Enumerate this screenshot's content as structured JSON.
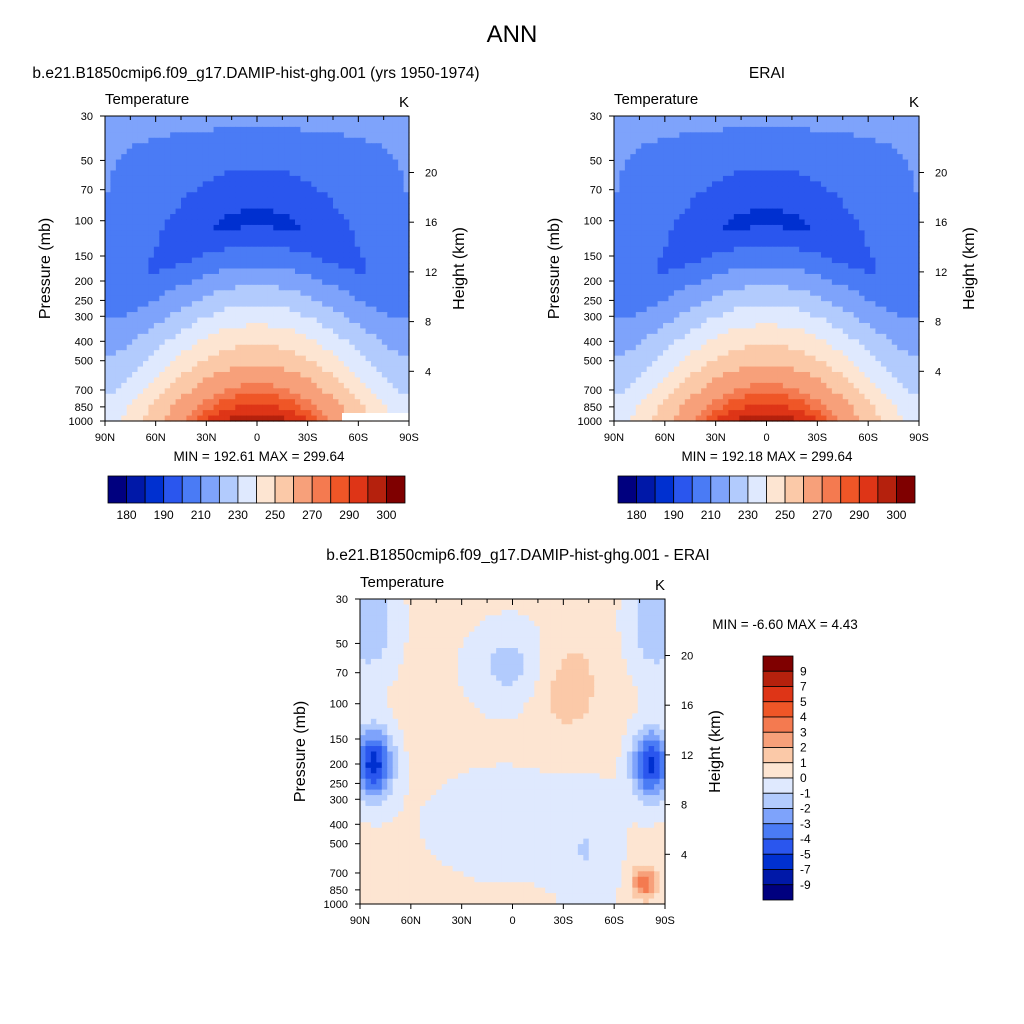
{
  "figure": {
    "title": "ANN"
  },
  "panels": [
    {
      "id": "model",
      "header": "b.e21.B1850cmip6.f09_g17.DAMIP-hist-ghg.001 (yrs 1950-1974)",
      "variable": "Temperature",
      "units": "K",
      "stats": "MIN = 192.61  MAX = 299.64",
      "kind": "absolute"
    },
    {
      "id": "obs",
      "header": "ERAI",
      "variable": "Temperature",
      "units": "K",
      "stats": "MIN = 192.18  MAX = 299.64",
      "kind": "absolute"
    },
    {
      "id": "diff",
      "header": "b.e21.B1850cmip6.f09_g17.DAMIP-hist-ghg.001 - ERAI",
      "variable": "Temperature",
      "units": "K",
      "stats": "MIN =  -6.60  MAX =   4.43",
      "kind": "difference"
    }
  ],
  "axes": {
    "xlabel_ticks": [
      "90N",
      "60N",
      "30N",
      "0",
      "30S",
      "60S",
      "90S"
    ],
    "pressure_label": "Pressure (mb)",
    "height_label": "Height (km)",
    "pressure_ticks": [
      "30",
      "50",
      "70",
      "100",
      "150",
      "200",
      "250",
      "300",
      "400",
      "500",
      "700",
      "850",
      "1000"
    ],
    "height_ticks": [
      "4",
      "8",
      "12",
      "16",
      "20"
    ]
  },
  "colorbars": {
    "absolute": {
      "colors": [
        "#00007f",
        "#0018a8",
        "#0030d0",
        "#2a56ee",
        "#4a7bf5",
        "#7ea3fb",
        "#b2cbfd",
        "#dfe9fe",
        "#fde5d2",
        "#fbc9a8",
        "#f7a07a",
        "#f47a50",
        "#ef5627",
        "#de3517",
        "#b5210d",
        "#7f0000"
      ],
      "labels": [
        "180",
        "190",
        "210",
        "230",
        "250",
        "270",
        "290",
        "300"
      ]
    },
    "difference": {
      "colors": [
        "#00007f",
        "#0018a8",
        "#0030d0",
        "#2a56ee",
        "#4a7bf5",
        "#7ea3fb",
        "#b2cbfd",
        "#dfe9fe",
        "#fde5d2",
        "#fbc9a8",
        "#f7a07a",
        "#f47a50",
        "#ef5627",
        "#de3517",
        "#b5210d",
        "#7f0000"
      ],
      "labels": [
        "-9",
        "-7",
        "-5",
        "-4",
        "-3",
        "-2",
        "-1",
        "0",
        "1",
        "2",
        "3",
        "4",
        "5",
        "7",
        "9"
      ]
    }
  },
  "chart_data": [
    {
      "type": "heatmap",
      "title": "b.e21.B1850cmip6.f09_g17.DAMIP-hist-ghg.001 (yrs 1950-1974)",
      "subtitle": "Temperature",
      "units": "K",
      "xlabel": "",
      "ylabel": "Pressure (mb)",
      "y2label": "Height (km)",
      "x_ticks": [
        "90N",
        "60N",
        "30N",
        "0",
        "30S",
        "60S",
        "90S"
      ],
      "y_ticks": [
        "30",
        "50",
        "70",
        "100",
        "150",
        "200",
        "250",
        "300",
        "400",
        "500",
        "700",
        "850",
        "1000"
      ],
      "y_scale": "log",
      "ylim": [
        1000,
        30
      ],
      "min": 192.61,
      "max": 299.64,
      "approx_profile_tropics_K": {
        "30": 225,
        "70": 198,
        "100": 195,
        "200": 220,
        "300": 240,
        "500": 265,
        "700": 280,
        "1000": 298
      }
    },
    {
      "type": "heatmap",
      "title": "ERAI",
      "subtitle": "Temperature",
      "units": "K",
      "xlabel": "",
      "ylabel": "Pressure (mb)",
      "y2label": "Height (km)",
      "x_ticks": [
        "90N",
        "60N",
        "30N",
        "0",
        "30S",
        "60S",
        "90S"
      ],
      "y_ticks": [
        "30",
        "50",
        "70",
        "100",
        "150",
        "200",
        "250",
        "300",
        "400",
        "500",
        "700",
        "850",
        "1000"
      ],
      "y_scale": "log",
      "ylim": [
        1000,
        30
      ],
      "min": 192.18,
      "max": 299.64,
      "approx_profile_tropics_K": {
        "30": 225,
        "70": 198,
        "100": 195,
        "200": 220,
        "300": 240,
        "500": 265,
        "700": 280,
        "1000": 298
      }
    },
    {
      "type": "heatmap",
      "title": "b.e21.B1850cmip6.f09_g17.DAMIP-hist-ghg.001 - ERAI",
      "subtitle": "Temperature",
      "units": "K",
      "xlabel": "",
      "ylabel": "Pressure (mb)",
      "y2label": "Height (km)",
      "x_ticks": [
        "90N",
        "60N",
        "30N",
        "0",
        "30S",
        "60S",
        "90S"
      ],
      "y_ticks": [
        "30",
        "50",
        "70",
        "100",
        "150",
        "200",
        "250",
        "300",
        "400",
        "500",
        "700",
        "850",
        "1000"
      ],
      "y_scale": "log",
      "ylim": [
        1000,
        30
      ],
      "min": -6.6,
      "max": 4.43,
      "contour_levels": [
        -9,
        -7,
        -5,
        -4,
        -3,
        -2,
        -1,
        0,
        1,
        2,
        3,
        4,
        5,
        7,
        9
      ]
    }
  ]
}
